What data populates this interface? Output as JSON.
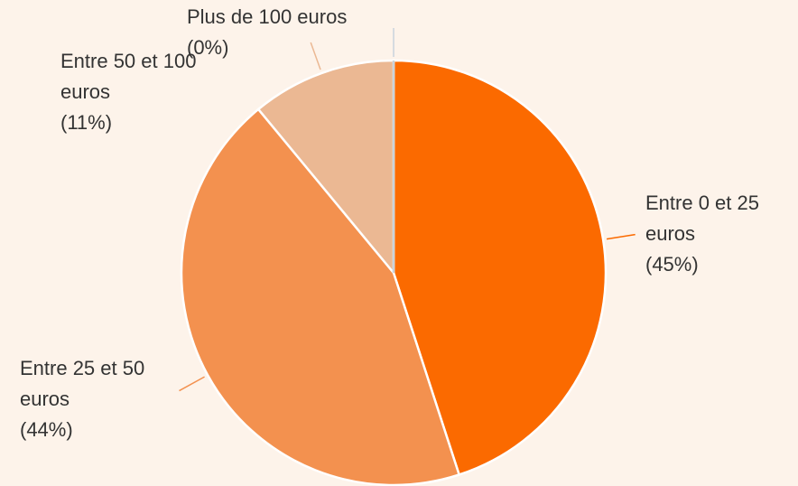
{
  "chart_data": {
    "type": "pie",
    "categories": [
      "Entre 0 et 25 euros",
      "Entre 25 et 50 euros",
      "Entre 50 et 100 euros",
      "Plus de 100 euros"
    ],
    "values": [
      45,
      44,
      11,
      0
    ],
    "value_labels": [
      "(45%)",
      "(44%)",
      "(11%)",
      "(0%)"
    ],
    "colors": [
      "#fb6a00",
      "#f3914f",
      "#ebb893",
      "#c9d3dc"
    ]
  }
}
